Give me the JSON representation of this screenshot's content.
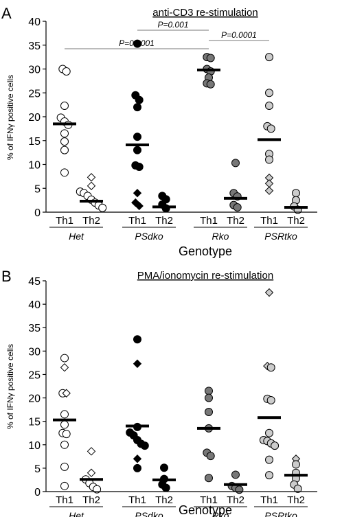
{
  "colors": {
    "Het": "#ffffff",
    "PSdko": "#000000",
    "Rko": "#777777",
    "PSRtko": "#cccccc",
    "axis": "#000000",
    "bracket": "#777777"
  },
  "chart_data": [
    {
      "type": "scatter",
      "panel_label": "A",
      "title": "anti-CD3 re-stimulation",
      "xlabel": "Genotype",
      "ylabel": "% of IFNγ positive cells",
      "ylim": [
        0,
        40
      ],
      "yticks": [
        0,
        5,
        10,
        15,
        20,
        25,
        30,
        35,
        40
      ],
      "groups": [
        "Het",
        "PSdko",
        "Rko",
        "PSRtko"
      ],
      "subgroups": [
        "Th1",
        "Th2"
      ],
      "significance": [
        {
          "label": "P=0.0001",
          "from": "Het Th1",
          "to": "Rko Th1"
        },
        {
          "label": "P=0.001",
          "from": "PSdko Th1",
          "to": "Rko Th1"
        },
        {
          "label": "P=0.0001",
          "from": "Rko Th1",
          "to": "PSRtko Th1"
        }
      ],
      "series": [
        {
          "group": "Het",
          "subgroup": "Th1",
          "mean": 18.5,
          "points": [
            {
              "y": 30.0,
              "shape": "circle"
            },
            {
              "y": 29.5,
              "shape": "circle"
            },
            {
              "y": 22.3,
              "shape": "circle"
            },
            {
              "y": 19.8,
              "shape": "circle"
            },
            {
              "y": 19.0,
              "shape": "circle"
            },
            {
              "y": 18.3,
              "shape": "circle"
            },
            {
              "y": 16.5,
              "shape": "circle"
            },
            {
              "y": 14.8,
              "shape": "circle"
            },
            {
              "y": 13.0,
              "shape": "circle"
            },
            {
              "y": 8.3,
              "shape": "circle"
            }
          ]
        },
        {
          "group": "Het",
          "subgroup": "Th2",
          "mean": 2.3,
          "points": [
            {
              "y": 7.3,
              "shape": "diamond"
            },
            {
              "y": 5.5,
              "shape": "diamond"
            },
            {
              "y": 4.3,
              "shape": "circle"
            },
            {
              "y": 4.0,
              "shape": "circle"
            },
            {
              "y": 3.4,
              "shape": "circle"
            },
            {
              "y": 2.6,
              "shape": "circle"
            },
            {
              "y": 2.0,
              "shape": "circle"
            },
            {
              "y": 1.4,
              "shape": "circle"
            },
            {
              "y": 0.9,
              "shape": "circle"
            }
          ]
        },
        {
          "group": "PSdko",
          "subgroup": "Th1",
          "mean": 14.1,
          "points": [
            {
              "y": 35.3,
              "shape": "circle"
            },
            {
              "y": 24.5,
              "shape": "circle"
            },
            {
              "y": 23.5,
              "shape": "circle"
            },
            {
              "y": 22.0,
              "shape": "circle"
            },
            {
              "y": 15.8,
              "shape": "circle"
            },
            {
              "y": 13.0,
              "shape": "circle"
            },
            {
              "y": 9.8,
              "shape": "circle"
            },
            {
              "y": 9.5,
              "shape": "circle"
            },
            {
              "y": 4.0,
              "shape": "diamond"
            },
            {
              "y": 2.0,
              "shape": "diamond"
            },
            {
              "y": 1.3,
              "shape": "diamond"
            }
          ]
        },
        {
          "group": "PSdko",
          "subgroup": "Th2",
          "mean": 1.1,
          "points": [
            {
              "y": 3.4,
              "shape": "circle"
            },
            {
              "y": 2.7,
              "shape": "circle"
            },
            {
              "y": 1.6,
              "shape": "circle"
            },
            {
              "y": 0.8,
              "shape": "circle"
            }
          ]
        },
        {
          "group": "Rko",
          "subgroup": "Th1",
          "mean": 29.8,
          "points": [
            {
              "y": 32.5,
              "shape": "circle"
            },
            {
              "y": 32.3,
              "shape": "circle"
            },
            {
              "y": 30.0,
              "shape": "circle"
            },
            {
              "y": 29.5,
              "shape": "circle"
            },
            {
              "y": 28.2,
              "shape": "circle"
            },
            {
              "y": 27.0,
              "shape": "circle"
            },
            {
              "y": 26.8,
              "shape": "circle"
            }
          ]
        },
        {
          "group": "Rko",
          "subgroup": "Th2",
          "mean": 2.9,
          "points": [
            {
              "y": 10.3,
              "shape": "circle"
            },
            {
              "y": 4.0,
              "shape": "circle"
            },
            {
              "y": 3.3,
              "shape": "circle"
            },
            {
              "y": 1.5,
              "shape": "circle"
            },
            {
              "y": 1.0,
              "shape": "circle"
            }
          ]
        },
        {
          "group": "PSRtko",
          "subgroup": "Th1",
          "mean": 15.2,
          "points": [
            {
              "y": 32.5,
              "shape": "circle"
            },
            {
              "y": 25.0,
              "shape": "circle"
            },
            {
              "y": 22.3,
              "shape": "circle"
            },
            {
              "y": 18.0,
              "shape": "circle"
            },
            {
              "y": 17.5,
              "shape": "circle"
            },
            {
              "y": 12.2,
              "shape": "circle"
            },
            {
              "y": 11.0,
              "shape": "circle"
            },
            {
              "y": 7.2,
              "shape": "diamond"
            },
            {
              "y": 6.0,
              "shape": "diamond"
            },
            {
              "y": 4.5,
              "shape": "diamond"
            }
          ]
        },
        {
          "group": "PSRtko",
          "subgroup": "Th2",
          "mean": 1.0,
          "points": [
            {
              "y": 4.0,
              "shape": "circle"
            },
            {
              "y": 2.5,
              "shape": "circle"
            },
            {
              "y": 1.2,
              "shape": "circle"
            },
            {
              "y": 0.5,
              "shape": "circle"
            }
          ]
        }
      ]
    },
    {
      "type": "scatter",
      "panel_label": "B",
      "title": "PMA/ionomycin re-stimulation",
      "xlabel": "Genotype",
      "ylabel": "% of IFNγ positive cells",
      "ylim": [
        0,
        45
      ],
      "yticks": [
        0,
        5,
        10,
        15,
        20,
        25,
        30,
        35,
        40,
        45
      ],
      "groups": [
        "Het",
        "PSdko",
        "Rko",
        "PSRtko"
      ],
      "subgroups": [
        "Th1",
        "Th2"
      ],
      "significance": [],
      "series": [
        {
          "group": "Het",
          "subgroup": "Th1",
          "mean": 15.3,
          "points": [
            {
              "y": 28.5,
              "shape": "circle"
            },
            {
              "y": 26.5,
              "shape": "diamond"
            },
            {
              "y": 21.0,
              "shape": "circle"
            },
            {
              "y": 21.0,
              "shape": "diamond"
            },
            {
              "y": 16.5,
              "shape": "circle"
            },
            {
              "y": 14.3,
              "shape": "circle"
            },
            {
              "y": 12.5,
              "shape": "circle"
            },
            {
              "y": 12.3,
              "shape": "circle"
            },
            {
              "y": 10.0,
              "shape": "circle"
            },
            {
              "y": 5.3,
              "shape": "circle"
            },
            {
              "y": 1.2,
              "shape": "circle"
            }
          ]
        },
        {
          "group": "Het",
          "subgroup": "Th2",
          "mean": 2.6,
          "points": [
            {
              "y": 8.6,
              "shape": "diamond"
            },
            {
              "y": 4.0,
              "shape": "diamond"
            },
            {
              "y": 2.6,
              "shape": "circle"
            },
            {
              "y": 1.8,
              "shape": "circle"
            },
            {
              "y": 1.0,
              "shape": "circle"
            },
            {
              "y": 0.5,
              "shape": "circle"
            }
          ]
        },
        {
          "group": "PSdko",
          "subgroup": "Th1",
          "mean": 14.0,
          "points": [
            {
              "y": 32.5,
              "shape": "circle"
            },
            {
              "y": 27.3,
              "shape": "diamond"
            },
            {
              "y": 13.8,
              "shape": "circle"
            },
            {
              "y": 12.6,
              "shape": "circle"
            },
            {
              "y": 12.0,
              "shape": "circle"
            },
            {
              "y": 11.0,
              "shape": "circle"
            },
            {
              "y": 10.2,
              "shape": "circle"
            },
            {
              "y": 9.8,
              "shape": "circle"
            },
            {
              "y": 7.0,
              "shape": "diamond"
            },
            {
              "y": 5.0,
              "shape": "circle"
            }
          ]
        },
        {
          "group": "PSdko",
          "subgroup": "Th2",
          "mean": 2.5,
          "points": [
            {
              "y": 5.1,
              "shape": "circle"
            },
            {
              "y": 2.7,
              "shape": "circle"
            },
            {
              "y": 1.5,
              "shape": "circle"
            },
            {
              "y": 0.8,
              "shape": "circle"
            }
          ]
        },
        {
          "group": "Rko",
          "subgroup": "Th1",
          "mean": 13.5,
          "points": [
            {
              "y": 21.5,
              "shape": "circle"
            },
            {
              "y": 20.0,
              "shape": "circle"
            },
            {
              "y": 17.0,
              "shape": "circle"
            },
            {
              "y": 13.5,
              "shape": "circle"
            },
            {
              "y": 8.3,
              "shape": "circle"
            },
            {
              "y": 7.6,
              "shape": "circle"
            },
            {
              "y": 2.9,
              "shape": "circle"
            }
          ]
        },
        {
          "group": "Rko",
          "subgroup": "Th2",
          "mean": 1.5,
          "points": [
            {
              "y": 3.6,
              "shape": "circle"
            },
            {
              "y": 1.2,
              "shape": "circle"
            },
            {
              "y": 0.8,
              "shape": "circle"
            },
            {
              "y": 0.4,
              "shape": "circle"
            }
          ]
        },
        {
          "group": "PSRtko",
          "subgroup": "Th1",
          "mean": 15.8,
          "points": [
            {
              "y": 42.5,
              "shape": "diamond"
            },
            {
              "y": 26.8,
              "shape": "diamond"
            },
            {
              "y": 26.5,
              "shape": "circle"
            },
            {
              "y": 19.8,
              "shape": "circle"
            },
            {
              "y": 19.5,
              "shape": "circle"
            },
            {
              "y": 12.5,
              "shape": "circle"
            },
            {
              "y": 11.0,
              "shape": "circle"
            },
            {
              "y": 10.8,
              "shape": "circle"
            },
            {
              "y": 10.3,
              "shape": "circle"
            },
            {
              "y": 9.8,
              "shape": "circle"
            },
            {
              "y": 6.8,
              "shape": "circle"
            },
            {
              "y": 3.5,
              "shape": "circle"
            }
          ]
        },
        {
          "group": "PSRtko",
          "subgroup": "Th2",
          "mean": 3.5,
          "points": [
            {
              "y": 7.0,
              "shape": "diamond"
            },
            {
              "y": 5.8,
              "shape": "circle"
            },
            {
              "y": 4.0,
              "shape": "circle"
            },
            {
              "y": 2.8,
              "shape": "circle"
            },
            {
              "y": 1.5,
              "shape": "circle"
            },
            {
              "y": 0.6,
              "shape": "circle"
            }
          ]
        }
      ]
    }
  ]
}
